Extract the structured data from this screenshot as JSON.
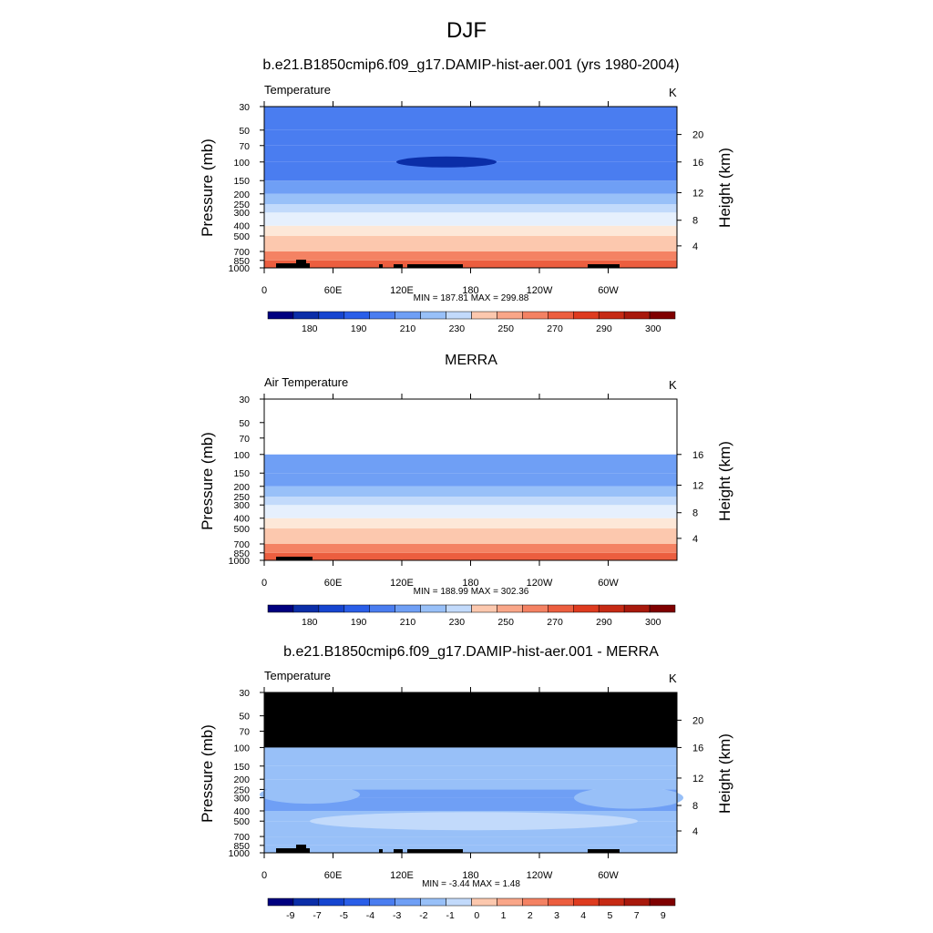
{
  "main_title": "DJF",
  "colors": {
    "temp_scale": [
      "#00007f",
      "#0b2ea8",
      "#1645d0",
      "#2a5ee8",
      "#4a7df0",
      "#6f9ff5",
      "#98c0f8",
      "#c2dafb",
      "#e6f0fd",
      "#fde8d8",
      "#fcc8ae",
      "#f9a688",
      "#f48263",
      "#ec5e3f",
      "#de3b1f",
      "#c62a14",
      "#a8190c",
      "#7f0000"
    ],
    "diff_scale": [
      "#00007f",
      "#0b2ea8",
      "#1645d0",
      "#2a5ee8",
      "#4a7df0",
      "#6f9ff5",
      "#98c0f8",
      "#c2dafb",
      "#e6f0fd",
      "#fde8d8",
      "#fcc8ae",
      "#f9a688",
      "#f48263",
      "#ec5e3f",
      "#de3b1f",
      "#c62a14",
      "#a8190c",
      "#7f0000"
    ]
  },
  "panels": [
    {
      "title": "b.e21.B1850cmip6.f09_g17.DAMIP-hist-aer.001 (yrs 1980-2004)",
      "left_label": "Temperature",
      "units": "K",
      "ylabel": "Pressure (mb)",
      "y2label": "Height (km)",
      "stats": "MIN = 187.81  MAX = 299.88",
      "colorbar_labels": [
        "180",
        "190",
        "210",
        "230",
        "250",
        "270",
        "290",
        "300"
      ]
    },
    {
      "title": "MERRA",
      "left_label": "Air Temperature",
      "units": "K",
      "ylabel": "Pressure (mb)",
      "y2label": "Height (km)",
      "stats": "MIN = 188.99  MAX = 302.36",
      "colorbar_labels": [
        "180",
        "190",
        "210",
        "230",
        "250",
        "270",
        "290",
        "300"
      ]
    },
    {
      "title": "b.e21.B1850cmip6.f09_g17.DAMIP-hist-aer.001 - MERRA",
      "left_label": "Temperature",
      "units": "K",
      "ylabel": "Pressure (mb)",
      "y2label": "Height (km)",
      "stats": "MIN = -3.44  MAX =  1.48",
      "colorbar_labels": [
        "-9",
        "-7",
        "-5",
        "-4",
        "-3",
        "-2",
        "-1",
        "0",
        "1",
        "2",
        "3",
        "4",
        "5",
        "7",
        "9"
      ]
    }
  ],
  "chart_data": [
    {
      "type": "heatmap",
      "title": "b.e21.B1850cmip6.f09_g17.DAMIP-hist-aer.001 (yrs 1980-2004)",
      "ylabel": "Pressure (mb)",
      "y2label": "Height (km)",
      "x_ticks": [
        "0",
        "60E",
        "120E",
        "180",
        "120W",
        "60W"
      ],
      "y_ticks": [
        "30",
        "50",
        "70",
        "100",
        "150",
        "200",
        "250",
        "300",
        "400",
        "500",
        "700",
        "850",
        "1000"
      ],
      "y2_ticks": [
        "4",
        "8",
        "12",
        "16",
        "20"
      ],
      "ylim": [
        1000,
        30
      ],
      "log_y": true,
      "levels": [
        1000,
        850,
        700,
        500,
        400,
        300,
        250,
        200,
        150,
        100,
        70,
        50,
        30
      ],
      "values": [
        286,
        281,
        276,
        262,
        253,
        240,
        231,
        223,
        215,
        205,
        205,
        208,
        212
      ],
      "min": 187.81,
      "max": 299.88,
      "colorbar_labels": [
        "180",
        "190",
        "210",
        "230",
        "250",
        "270",
        "290",
        "300"
      ]
    },
    {
      "type": "heatmap",
      "title": "MERRA",
      "ylabel": "Pressure (mb)",
      "y2label": "Height (km)",
      "x_ticks": [
        "0",
        "60E",
        "120E",
        "180",
        "120W",
        "60W"
      ],
      "y_ticks": [
        "30",
        "50",
        "70",
        "100",
        "150",
        "200",
        "250",
        "300",
        "400",
        "500",
        "700",
        "850",
        "1000"
      ],
      "y2_ticks": [
        "4",
        "8",
        "12",
        "16"
      ],
      "ylim": [
        1000,
        30
      ],
      "log_y": true,
      "levels": [
        1000,
        850,
        700,
        500,
        400,
        300,
        250,
        200,
        150,
        100
      ],
      "values": [
        288,
        282,
        277,
        263,
        254,
        241,
        232,
        224,
        215,
        206
      ],
      "min": 188.99,
      "max": 302.36,
      "colorbar_labels": [
        "180",
        "190",
        "210",
        "230",
        "250",
        "270",
        "290",
        "300"
      ]
    },
    {
      "type": "heatmap",
      "title": "b.e21.B1850cmip6.f09_g17.DAMIP-hist-aer.001 - MERRA",
      "ylabel": "Pressure (mb)",
      "y2label": "Height (km)",
      "x_ticks": [
        "0",
        "60E",
        "120E",
        "180",
        "120W",
        "60W"
      ],
      "y_ticks": [
        "30",
        "50",
        "70",
        "100",
        "150",
        "200",
        "250",
        "300",
        "400",
        "500",
        "700",
        "850",
        "1000"
      ],
      "y2_ticks": [
        "4",
        "8",
        "12",
        "16",
        "20"
      ],
      "ylim": [
        1000,
        30
      ],
      "log_y": true,
      "levels": [
        1000,
        850,
        700,
        500,
        400,
        300,
        250,
        200,
        150,
        100
      ],
      "values": [
        -1,
        -1,
        -1,
        -1,
        -2,
        -2,
        -2,
        -1,
        -1,
        -1
      ],
      "min": -3.44,
      "max": 1.48,
      "colorbar_labels": [
        "-9",
        "-7",
        "-5",
        "-4",
        "-3",
        "-2",
        "-1",
        "0",
        "1",
        "2",
        "3",
        "4",
        "5",
        "7",
        "9"
      ]
    }
  ]
}
